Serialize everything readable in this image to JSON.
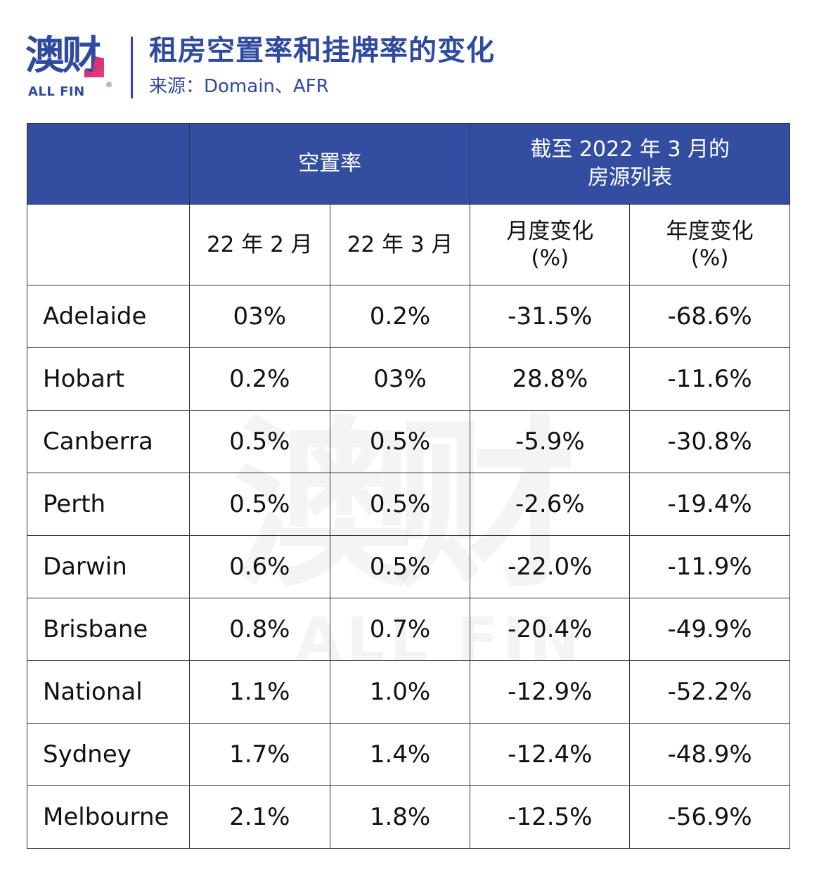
{
  "header": {
    "logo": {
      "chinese": "澳财",
      "english": "ALL FIN",
      "registered": "®"
    },
    "title": "租房空置率和挂牌率的变化",
    "source": "来源：Domain、AFR"
  },
  "watermark": {
    "chinese": "澳财",
    "english": "ALL FIN"
  },
  "table": {
    "group_headers": {
      "blank": "",
      "vacancy_rate": "空置率",
      "listings_line1": "截至 2022 年 3 月的",
      "listings_line2": "房源列表"
    },
    "sub_headers": {
      "feb_22": "22 年 2 月",
      "mar_22": "22 年 3 月",
      "monthly_change_line1": "月度变化",
      "monthly_change_line2": "(%)",
      "annual_change_line1": "年度变化",
      "annual_change_line2": "(%)"
    },
    "rows": [
      {
        "city": "Adelaide",
        "feb": "03%",
        "mar": "0.2%",
        "monthly": "-31.5%",
        "annual": "-68.6%"
      },
      {
        "city": "Hobart",
        "feb": "0.2%",
        "mar": "03%",
        "monthly": "28.8%",
        "annual": "-11.6%"
      },
      {
        "city": "Canberra",
        "feb": "0.5%",
        "mar": "0.5%",
        "monthly": "-5.9%",
        "annual": "-30.8%"
      },
      {
        "city": "Perth",
        "feb": "0.5%",
        "mar": "0.5%",
        "monthly": "-2.6%",
        "annual": "-19.4%"
      },
      {
        "city": "Darwin",
        "feb": "0.6%",
        "mar": "0.5%",
        "monthly": "-22.0%",
        "annual": "-11.9%"
      },
      {
        "city": "Brisbane",
        "feb": "0.8%",
        "mar": "0.7%",
        "monthly": "-20.4%",
        "annual": "-49.9%"
      },
      {
        "city": "National",
        "feb": "1.1%",
        "mar": "1.0%",
        "monthly": "-12.9%",
        "annual": "-52.2%"
      },
      {
        "city": "Sydney",
        "feb": "1.7%",
        "mar": "1.4%",
        "monthly": "-12.4%",
        "annual": "-48.9%"
      },
      {
        "city": "Melbourne",
        "feb": "2.1%",
        "mar": "1.8%",
        "monthly": "-12.5%",
        "annual": "-56.9%"
      }
    ]
  },
  "colors": {
    "brand_blue": "#2f4a9e",
    "header_fill": "#334ea1",
    "logo_accent": "#d6306f",
    "grid": "#333333"
  }
}
